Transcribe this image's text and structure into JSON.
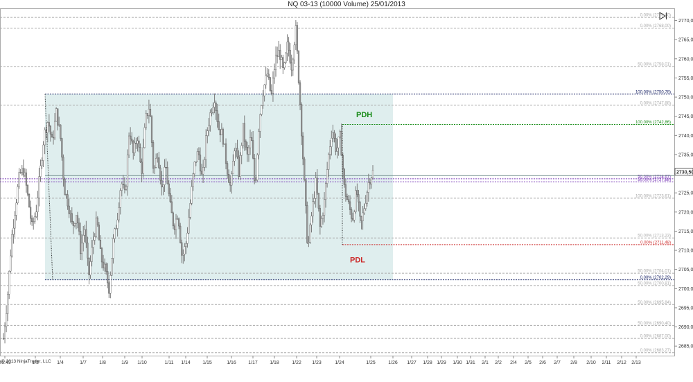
{
  "header": {
    "title": "NQ 03-13 (10000 Volume)  25/01/2013"
  },
  "copyright": "© 2013 NinjaTrader, LLC",
  "icons": {
    "nav": "skip-to-end-icon"
  },
  "colors": {
    "candle": "#7a7a7a",
    "zone_fill": "#dcecec",
    "navy": "#1a2466",
    "green": "#1a8c1a",
    "red": "#cc2a2a",
    "purple": "#7a3ab8",
    "fib_gray": "#aaaaaa",
    "grid": "#dddddd"
  },
  "chart_data": {
    "type": "candlestick",
    "title": "NQ 03-13 (10000 Volume)  25/01/2013",
    "ylim": [
      2682.5,
      2773
    ],
    "y_ticks": [
      "2685,00",
      "2690,00",
      "2695,00",
      "2700,00",
      "2705,00",
      "2710,00",
      "2715,00",
      "2720,00",
      "2725,00",
      "2730,00",
      "2735,00",
      "2740,00",
      "2745,00",
      "2750,00",
      "2755,00",
      "2760,00",
      "2765,00",
      "2770,00"
    ],
    "x_tick_labels": [
      "46:49",
      "1/3",
      "1/4",
      "1/7",
      "1/8",
      "1/9",
      "1/10",
      "1/11",
      "1/14",
      "1/15",
      "1/16",
      "1/17",
      "1/18",
      "1/22",
      "1/23",
      "1/24",
      "1/25",
      "1/26",
      "1/27",
      "1/28",
      "1/29",
      "1/30",
      "1/31",
      "2/1",
      "2/2",
      "2/4",
      "2/5",
      "2/6",
      "2/7",
      "2/8",
      "2/10",
      "2/11",
      "2/12",
      "2/13"
    ],
    "last_price": "2730,50",
    "price_path": [
      [
        0,
        2687
      ],
      [
        2,
        2698
      ],
      [
        4,
        2713
      ],
      [
        6,
        2722
      ],
      [
        7,
        2730
      ],
      [
        9,
        2731
      ],
      [
        10,
        2724
      ],
      [
        12,
        2716
      ],
      [
        13,
        2720
      ],
      [
        15,
        2730
      ],
      [
        16,
        2740
      ],
      [
        17,
        2744
      ],
      [
        18,
        2738
      ],
      [
        19,
        2746
      ],
      [
        20,
        2740
      ],
      [
        21,
        2726
      ],
      [
        22,
        2722
      ],
      [
        23,
        2716
      ],
      [
        24,
        2720
      ],
      [
        25,
        2710
      ],
      [
        26,
        2716
      ],
      [
        27,
        2703
      ],
      [
        28,
        2712
      ],
      [
        29,
        2718
      ],
      [
        30,
        2708
      ],
      [
        31,
        2705
      ],
      [
        32,
        2700
      ],
      [
        33,
        2712
      ],
      [
        34,
        2718
      ],
      [
        35,
        2728
      ],
      [
        36,
        2724
      ],
      [
        37,
        2742
      ],
      [
        38,
        2735
      ],
      [
        39,
        2740
      ],
      [
        40,
        2730
      ],
      [
        41,
        2744
      ],
      [
        42,
        2748
      ],
      [
        43,
        2730
      ],
      [
        44,
        2736
      ],
      [
        45,
        2726
      ],
      [
        46,
        2732
      ],
      [
        47,
        2722
      ],
      [
        48,
        2716
      ],
      [
        49,
        2720
      ],
      [
        50,
        2708
      ],
      [
        51,
        2712
      ],
      [
        52,
        2722
      ],
      [
        53,
        2732
      ],
      [
        54,
        2736
      ],
      [
        55,
        2728
      ],
      [
        56,
        2740
      ],
      [
        57,
        2746
      ],
      [
        58,
        2750
      ],
      [
        59,
        2742
      ],
      [
        60,
        2740
      ],
      [
        61,
        2732
      ],
      [
        62,
        2726
      ],
      [
        63,
        2738
      ],
      [
        64,
        2730
      ],
      [
        65,
        2742
      ],
      [
        66,
        2734
      ],
      [
        67,
        2740
      ],
      [
        68,
        2726
      ],
      [
        69,
        2744
      ],
      [
        70,
        2752
      ],
      [
        71,
        2756
      ],
      [
        72,
        2750
      ],
      [
        73,
        2760
      ],
      [
        74,
        2762
      ],
      [
        75,
        2756
      ],
      [
        76,
        2764
      ],
      [
        77,
        2758
      ],
      [
        78,
        2768
      ],
      [
        79,
        2750
      ],
      [
        80,
        2730
      ],
      [
        81,
        2710
      ],
      [
        82,
        2720
      ],
      [
        83,
        2728
      ],
      [
        84,
        2716
      ],
      [
        85,
        2722
      ],
      [
        86,
        2734
      ],
      [
        87,
        2742
      ],
      [
        88,
        2736
      ],
      [
        89,
        2740
      ],
      [
        90,
        2726
      ],
      [
        91,
        2722
      ],
      [
        92,
        2718
      ],
      [
        93,
        2726
      ],
      [
        94,
        2716
      ],
      [
        95,
        2722
      ],
      [
        96,
        2728
      ],
      [
        97,
        2730.5
      ]
    ],
    "zone": {
      "x_start": "1/3",
      "x_end": "1/26",
      "top": 2750.78,
      "bottom": 2702.29
    },
    "horizontal_lines": [
      {
        "label": "0.00% (2770,80)",
        "value": 2770.8,
        "style": "gray"
      },
      {
        "label": "0.00% (2768,00)",
        "value": 2768.0,
        "style": "gray"
      },
      {
        "label": "50.00% (2758,01)",
        "value": 2758.01,
        "style": "gray"
      },
      {
        "label": "100.00% (2750,78)",
        "value": 2750.78,
        "style": "navy"
      },
      {
        "label": "0.00% (2747,88)",
        "value": 2747.88,
        "style": "gray"
      },
      {
        "label": "100.00% (2742,86)",
        "value": 2742.86,
        "style": "green"
      },
      {
        "label": "50.00% (2728,67)",
        "value": 2728.67,
        "style": "purple"
      },
      {
        "label": "50.00% (2727,88)",
        "value": 2727.88,
        "style": "purple"
      },
      {
        "label": "100.00% (2723,61)",
        "value": 2723.61,
        "style": "gray"
      },
      {
        "label": "50.00% (2713,23)",
        "value": 2713.23,
        "style": "gray"
      },
      {
        "label": "0.00% (2711,48)",
        "value": 2711.48,
        "style": "red"
      },
      {
        "label": "50.00% (2704,01)",
        "value": 2704.01,
        "style": "gray"
      },
      {
        "label": "0.00% (2702,29)",
        "value": 2702.29,
        "style": "navy"
      },
      {
        "label": "50.00% (2700,81)",
        "value": 2700.81,
        "style": "gray"
      },
      {
        "label": "50.00% (2695,84)",
        "value": 2695.84,
        "style": "gray"
      },
      {
        "label": "50.00% (2690,40)",
        "value": 2690.4,
        "style": "gray"
      },
      {
        "label": "0.00% (2687,00)",
        "value": 2687.0,
        "style": "gray"
      },
      {
        "label": "0.00% (2683,27)",
        "value": 2683.27,
        "style": "gray"
      }
    ],
    "annotations": [
      {
        "text": "PDH",
        "color": "green"
      },
      {
        "text": "PDL",
        "color": "red"
      }
    ]
  }
}
